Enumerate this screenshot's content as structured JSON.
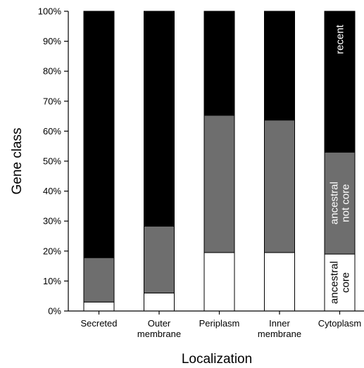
{
  "chart_data": {
    "type": "bar",
    "stacked": true,
    "percent": true,
    "categories": [
      "Secreted",
      "Outer membrane",
      "Periplasm",
      "Inner membrane",
      "Cytoplasm"
    ],
    "category_lines": [
      [
        "Secreted"
      ],
      [
        "Outer",
        "membrane"
      ],
      [
        "Periplasm"
      ],
      [
        "Inner",
        "membrane"
      ],
      [
        "Cytoplasm"
      ]
    ],
    "series": [
      {
        "name": "ancestral core",
        "color": "#ffffff",
        "values": [
          3,
          6,
          19.5,
          19.5,
          19
        ]
      },
      {
        "name": "ancestral not core",
        "color": "#6e6e6e",
        "values": [
          14.8,
          22.3,
          45.8,
          44.2,
          34
        ]
      },
      {
        "name": "recent",
        "color": "#000000",
        "values": [
          82.2,
          71.7,
          34.7,
          36.3,
          47
        ]
      }
    ],
    "series_label_lines": [
      [
        "ancestral",
        "core"
      ],
      [
        "ancestral",
        "not core"
      ],
      [
        "recent"
      ]
    ],
    "ylim": [
      0,
      100
    ],
    "yticks": [
      "0%",
      "10%",
      "20%",
      "30%",
      "40%",
      "50%",
      "60%",
      "70%",
      "80%",
      "90%",
      "100%"
    ],
    "ylabel": "Gene class",
    "xlabel": "Localization",
    "grid": false
  }
}
